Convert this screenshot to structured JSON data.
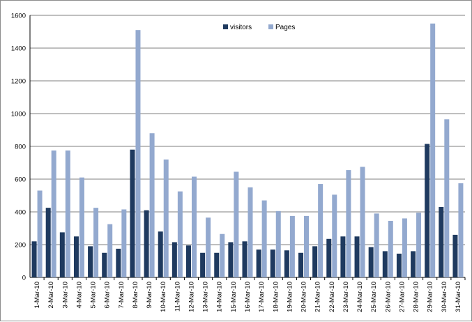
{
  "chart_data": {
    "type": "bar",
    "title": "",
    "xlabel": "",
    "ylabel": "",
    "ylim": [
      0,
      1600
    ],
    "yticks": [
      0,
      200,
      400,
      600,
      800,
      1000,
      1200,
      1400,
      1600
    ],
    "grid": true,
    "legend_position": "top-center",
    "categories": [
      "1-Mar-10",
      "2-Mar-10",
      "3-Mar-10",
      "4-Mar-10",
      "5-Mar-10",
      "6-Mar-10",
      "7-Mar-10",
      "8-Mar-10",
      "9-Mar-10",
      "10-Mar-10",
      "11-Mar-10",
      "12-Mar-10",
      "13-Mar-10",
      "14-Mar-10",
      "15-Mar-10",
      "16-Mar-10",
      "17-Mar-10",
      "18-Mar-10",
      "19-Mar-10",
      "20-Mar-10",
      "21-Mar-10",
      "22-Mar-10",
      "23-Mar-10",
      "24-Mar-10",
      "25-Mar-10",
      "26-Mar-10",
      "27-Mar-10",
      "28-Mar-10",
      "29-Mar-10",
      "30-Mar-10",
      "31-Mar-10"
    ],
    "series": [
      {
        "name": "visitors",
        "color": "#1f3a5f",
        "values": [
          220,
          425,
          275,
          250,
          190,
          150,
          175,
          780,
          410,
          280,
          215,
          195,
          150,
          150,
          215,
          220,
          170,
          170,
          165,
          150,
          190,
          235,
          250,
          250,
          185,
          160,
          145,
          160,
          815,
          430,
          260
        ]
      },
      {
        "name": "Pages",
        "color": "#93a9cf",
        "values": [
          530,
          775,
          775,
          610,
          425,
          325,
          415,
          1510,
          880,
          720,
          525,
          615,
          365,
          265,
          645,
          550,
          470,
          405,
          375,
          375,
          570,
          505,
          655,
          675,
          390,
          345,
          360,
          395,
          1550,
          965,
          575
        ]
      }
    ]
  }
}
